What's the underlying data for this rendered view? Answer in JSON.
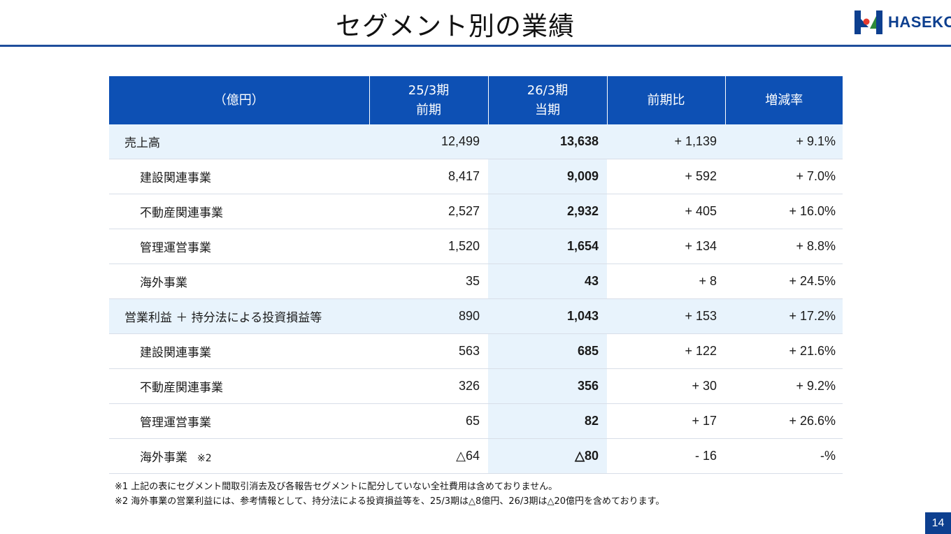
{
  "page": {
    "title": "セグメント別の業績",
    "logo_text": "HASEKO",
    "page_number": "14"
  },
  "colors": {
    "header_bg": "#0d50b4",
    "highlight_bg": "#e8f3fc",
    "rule": "#1f4e9c",
    "logo_blue": "#0d3f8f",
    "logo_red": "#e63b2e",
    "logo_green": "#2e8b3a"
  },
  "table": {
    "header": {
      "unit": "（億円）",
      "prev_period": "25/3期",
      "prev_sub": "前期",
      "cur_period": "26/3期",
      "cur_sub": "当期",
      "diff": "前期比",
      "rate": "増減率"
    },
    "rows": [
      {
        "label": "売上高",
        "prev": "12,499",
        "cur": "13,638",
        "diff": "+ 1,139",
        "rate": "+ 9.1%",
        "main": true
      },
      {
        "label": "建設関連事業",
        "prev": "8,417",
        "cur": "9,009",
        "diff": "+ 592",
        "rate": "+ 7.0%"
      },
      {
        "label": "不動産関連事業",
        "prev": "2,527",
        "cur": "2,932",
        "diff": "+ 405",
        "rate": "+ 16.0%"
      },
      {
        "label": "管理運営事業",
        "prev": "1,520",
        "cur": "1,654",
        "diff": "+ 134",
        "rate": "+ 8.8%"
      },
      {
        "label": "海外事業",
        "prev": "35",
        "cur": "43",
        "diff": "+ 8",
        "rate": "+ 24.5%"
      },
      {
        "label": "営業利益 ＋ 持分法による投資損益等",
        "prev": "890",
        "cur": "1,043",
        "diff": "+ 153",
        "rate": "+ 17.2%",
        "main": true
      },
      {
        "label": "建設関連事業",
        "prev": "563",
        "cur": "685",
        "diff": "+ 122",
        "rate": "+ 21.6%"
      },
      {
        "label": "不動産関連事業",
        "prev": "326",
        "cur": "356",
        "diff": "+ 30",
        "rate": "+ 9.2%"
      },
      {
        "label": "管理運営事業",
        "prev": "65",
        "cur": "82",
        "diff": "+ 17",
        "rate": "+ 26.6%"
      },
      {
        "label": "海外事業",
        "note": "※2",
        "prev": "△64",
        "cur": "△80",
        "diff": "- 16",
        "rate": "-%"
      }
    ]
  },
  "notes": [
    "※1 上記の表にセグメント間取引消去及び各報告セグメントに配分していない全社費用は含めておりません。",
    "※2 海外事業の営業利益には、参考情報として、持分法による投資損益等を、25/3期は△8億円、26/3期は△20億円を含めております。"
  ]
}
